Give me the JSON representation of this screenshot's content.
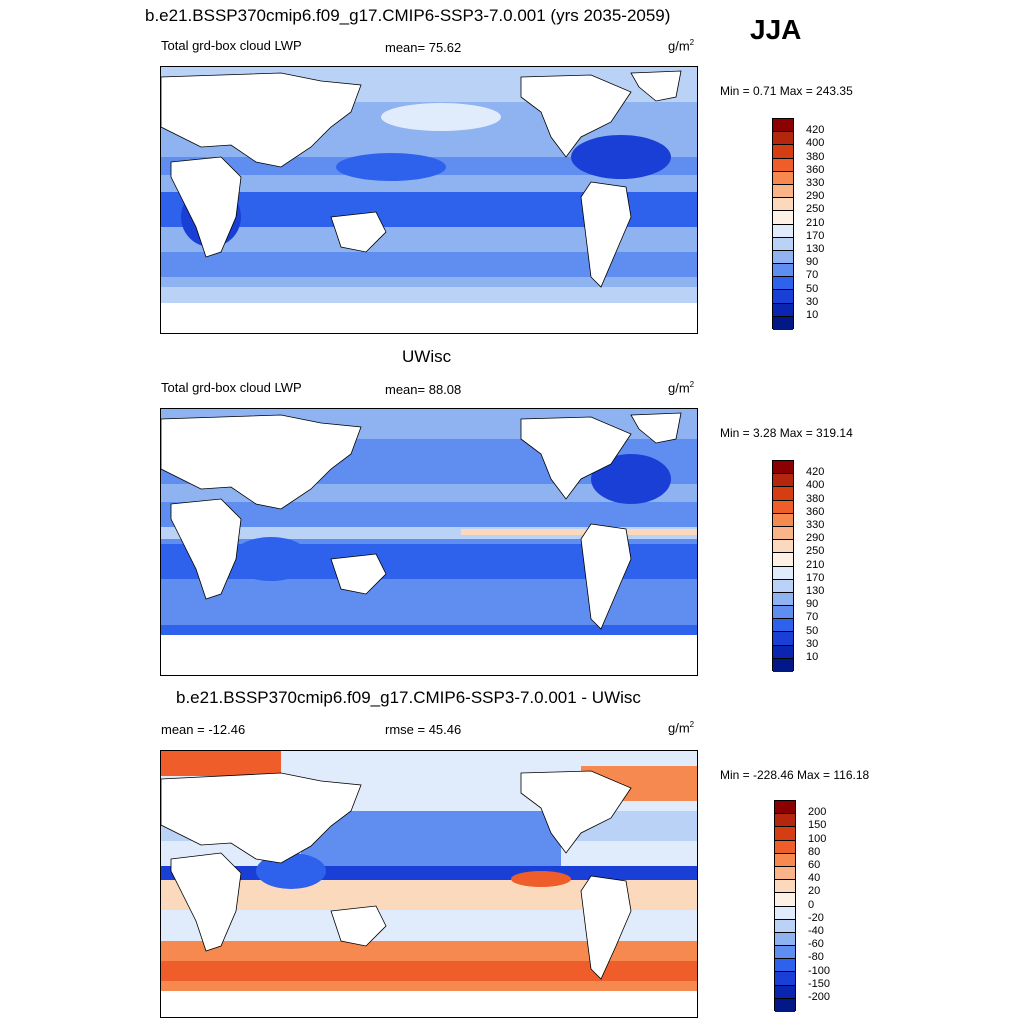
{
  "header": {
    "title": "b.e21.BSSP370cmip6.f09_g17.CMIP6-SSP3-7.0.001 (yrs 2035-2059)",
    "season": "JJA"
  },
  "panels": [
    {
      "title": "",
      "left_label": "Total grd-box cloud LWP",
      "center_label": "mean=  75.62",
      "units": "g/m",
      "units_sup": "2",
      "minmax": "Min =   0.71 Max = 243.35",
      "colorbar_labels": [
        "420",
        "400",
        "380",
        "360",
        "330",
        "290",
        "250",
        "210",
        "170",
        "130",
        "90",
        "70",
        "50",
        "30",
        "10"
      ],
      "colorbar_colors": [
        "#8b0000",
        "#b5260e",
        "#d53e12",
        "#ee5d2a",
        "#f6894f",
        "#f9b48a",
        "#fbd9bd",
        "#fdf0e4",
        "#e0ecfb",
        "#b9d2f6",
        "#8fb3f0",
        "#5f8df0",
        "#2f62ec",
        "#1a3fd6",
        "#0a25b0",
        "#031887"
      ]
    },
    {
      "title": "UWisc",
      "left_label": "Total grd-box cloud LWP",
      "center_label": "mean=  88.08",
      "units": "g/m",
      "units_sup": "2",
      "minmax": "Min =   3.28 Max = 319.14",
      "colorbar_labels": [
        "420",
        "400",
        "380",
        "360",
        "330",
        "290",
        "250",
        "210",
        "170",
        "130",
        "90",
        "70",
        "50",
        "30",
        "10"
      ],
      "colorbar_colors": [
        "#8b0000",
        "#b5260e",
        "#d53e12",
        "#ee5d2a",
        "#f6894f",
        "#f9b48a",
        "#fbd9bd",
        "#fdf0e4",
        "#e0ecfb",
        "#b9d2f6",
        "#8fb3f0",
        "#5f8df0",
        "#2f62ec",
        "#1a3fd6",
        "#0a25b0",
        "#031887"
      ]
    },
    {
      "title": "b.e21.BSSP370cmip6.f09_g17.CMIP6-SSP3-7.0.001 - UWisc",
      "left_label": "mean = -12.46",
      "center_label": "rmse =  45.46",
      "units": "g/m",
      "units_sup": "2",
      "minmax": "Min = -228.46 Max = 116.18",
      "colorbar_labels": [
        "200",
        "150",
        "100",
        "80",
        "60",
        "40",
        "20",
        "0",
        "-20",
        "-40",
        "-60",
        "-80",
        "-100",
        "-150",
        "-200"
      ],
      "colorbar_colors": [
        "#8b0000",
        "#b5260e",
        "#d53e12",
        "#ee5d2a",
        "#f6894f",
        "#f9b48a",
        "#fbd9bd",
        "#fdf0e4",
        "#e0ecfb",
        "#b9d2f6",
        "#8fb3f0",
        "#5f8df0",
        "#2f62ec",
        "#1a3fd6",
        "#0a25b0",
        "#031887"
      ]
    }
  ]
}
